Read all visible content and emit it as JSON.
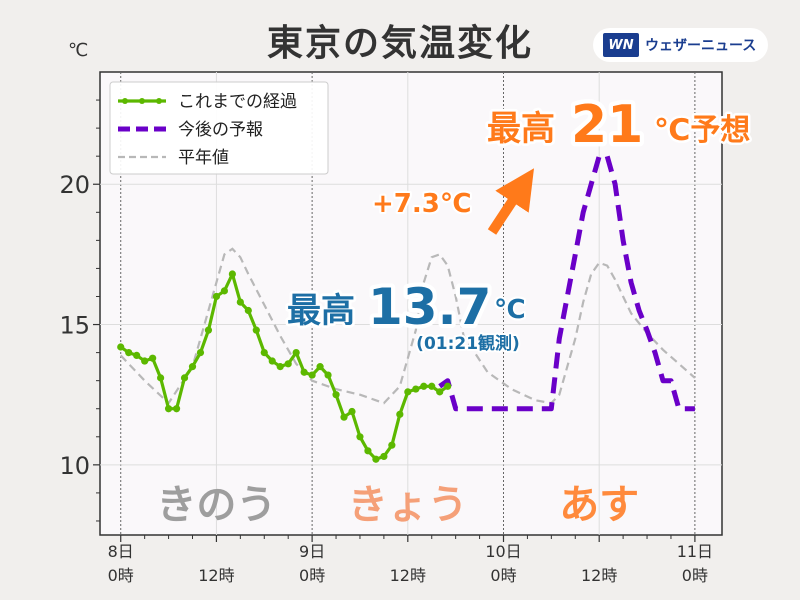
{
  "header": {
    "title": "東京の気温変化",
    "unit": "℃",
    "brand": {
      "mark": "WN",
      "name": "ウェザーニュース"
    }
  },
  "colors": {
    "observed": "#5cb800",
    "forecast": "#6a00c8",
    "normal": "#b8b8b8",
    "accent_orange": "#ff7a1a",
    "accent_blue": "#1d6fa5",
    "plot_bg": "#faf8fa"
  },
  "chart_data": {
    "type": "line",
    "title": "東京の気温変化",
    "ylabel": "℃",
    "xlim": [
      0,
      72
    ],
    "ylim": [
      7.5,
      24
    ],
    "grid": true,
    "legend": "top-left",
    "x_ticks": [
      {
        "x": 0,
        "label": "8日\n0時"
      },
      {
        "x": 12,
        "label": "12時"
      },
      {
        "x": 24,
        "label": "9日\n0時"
      },
      {
        "x": 36,
        "label": "12時"
      },
      {
        "x": 48,
        "label": "10日\n0時"
      },
      {
        "x": 60,
        "label": "12時"
      },
      {
        "x": 72,
        "label": "11日\n0時"
      }
    ],
    "y_ticks": [
      10,
      15,
      20
    ],
    "series": [
      {
        "name": "これまでの経過",
        "style": "solid-markers",
        "x": [
          0,
          1,
          2,
          3,
          4,
          5,
          6,
          7,
          8,
          9,
          10,
          11,
          12,
          13,
          14,
          15,
          16,
          17,
          18,
          19,
          20,
          21,
          22,
          23,
          24,
          25,
          26,
          27,
          28,
          29,
          30,
          31,
          32,
          33,
          34,
          35,
          36,
          37,
          38,
          39,
          40,
          41
        ],
        "y": [
          14.2,
          14.0,
          13.9,
          13.7,
          13.8,
          13.1,
          12.0,
          12.0,
          13.1,
          13.5,
          14.0,
          14.8,
          16.0,
          16.2,
          16.8,
          15.8,
          15.5,
          14.8,
          14.0,
          13.7,
          13.5,
          13.6,
          14.0,
          13.3,
          13.2,
          13.5,
          13.2,
          12.5,
          11.7,
          11.9,
          11.0,
          10.5,
          10.2,
          10.3,
          10.7,
          11.8,
          12.6,
          12.7,
          12.8,
          12.8,
          12.6,
          12.8
        ]
      },
      {
        "name": "今後の予報",
        "style": "dashed",
        "x": [
          40,
          41,
          42,
          43,
          48,
          51,
          54,
          55,
          56,
          57,
          58,
          59,
          60,
          61,
          62,
          63,
          64,
          65,
          66,
          67,
          68,
          69,
          70,
          71,
          72
        ],
        "y": [
          12.8,
          13.0,
          12.0,
          12.0,
          12.0,
          12.0,
          12.0,
          14.5,
          16.0,
          17.5,
          19.0,
          20.0,
          21.0,
          21.0,
          20.0,
          18.0,
          16.5,
          15.5,
          14.8,
          14.0,
          13.0,
          13.0,
          12.0,
          12.0,
          12.0
        ]
      },
      {
        "name": "平年値",
        "style": "dashed-thin",
        "x": [
          0,
          3,
          6,
          9,
          12,
          13,
          14,
          15,
          16,
          18,
          20,
          22,
          24,
          27,
          30,
          32,
          33,
          35,
          37,
          38,
          39,
          40,
          41,
          42,
          43,
          46,
          49,
          52,
          54,
          55,
          56,
          57,
          58,
          59,
          60,
          61,
          62,
          63,
          64,
          66,
          68,
          70,
          72
        ],
        "y": [
          13.9,
          13.0,
          12.2,
          13.5,
          16.5,
          17.5,
          17.7,
          17.4,
          16.8,
          15.7,
          14.6,
          13.6,
          13.0,
          12.7,
          12.5,
          12.3,
          12.2,
          12.8,
          14.8,
          16.5,
          17.4,
          17.5,
          17.1,
          16.0,
          14.6,
          13.3,
          12.7,
          12.3,
          12.2,
          12.5,
          13.5,
          14.5,
          15.8,
          16.8,
          17.2,
          17.1,
          16.6,
          16.0,
          15.4,
          14.7,
          14.1,
          13.6,
          13.1
        ]
      }
    ],
    "annotations": {
      "day_labels": [
        {
          "text": "きのう",
          "x": 12,
          "color": "#9e9e9e"
        },
        {
          "text": "きょう",
          "x": 36,
          "color": "#f5a078"
        },
        {
          "text": "あす",
          "x": 60,
          "color": "#ff8a3c"
        }
      ],
      "observed_max": {
        "prefix": "最高",
        "value": "13.7",
        "unit": "℃",
        "note": "(01:21観測)"
      },
      "forecast_max": {
        "prefix": "最高",
        "value": "21",
        "unit": "℃予想"
      },
      "difference": "+7.3℃"
    }
  }
}
